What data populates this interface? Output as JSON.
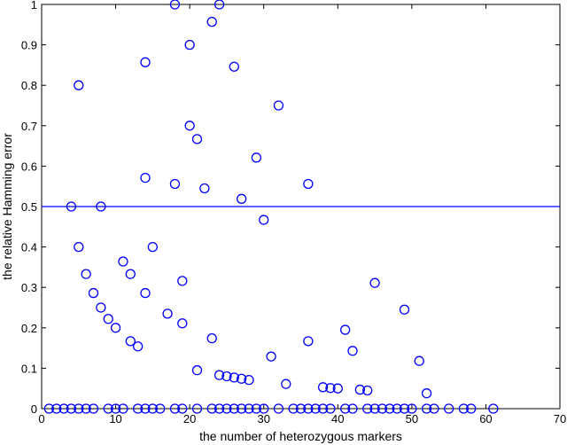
{
  "chart_data": {
    "type": "scatter",
    "xlabel": "the number of heterozygous markers",
    "ylabel": "the relative Hamming error",
    "xlim": [
      0,
      70
    ],
    "ylim": [
      0,
      1
    ],
    "x_ticks": [
      0,
      10,
      20,
      30,
      40,
      50,
      60,
      70
    ],
    "y_ticks": [
      0,
      0.1,
      0.2,
      0.3,
      0.4,
      0.5,
      0.6,
      0.7,
      0.8,
      0.9,
      1
    ],
    "x_tick_labels": [
      "0",
      "10",
      "20",
      "30",
      "40",
      "50",
      "60",
      "70"
    ],
    "y_tick_labels": [
      "0",
      "0.1",
      "0.2",
      "0.3",
      "0.4",
      "0.5",
      "0.6",
      "0.7",
      "0.8",
      "0.9",
      "1"
    ],
    "grid": false,
    "reference_line": {
      "y": 0.5,
      "color": "#0000ff"
    },
    "marker": "circle-open",
    "color": "#0000ff",
    "points": [
      {
        "x": 1,
        "y": 0
      },
      {
        "x": 2,
        "y": 0
      },
      {
        "x": 3,
        "y": 0
      },
      {
        "x": 4,
        "y": 0
      },
      {
        "x": 5,
        "y": 0
      },
      {
        "x": 6,
        "y": 0
      },
      {
        "x": 7,
        "y": 0
      },
      {
        "x": 9,
        "y": 0
      },
      {
        "x": 10,
        "y": 0
      },
      {
        "x": 11,
        "y": 0
      },
      {
        "x": 13,
        "y": 0
      },
      {
        "x": 14,
        "y": 0
      },
      {
        "x": 15,
        "y": 0
      },
      {
        "x": 16,
        "y": 0
      },
      {
        "x": 18,
        "y": 0
      },
      {
        "x": 19,
        "y": 0
      },
      {
        "x": 21,
        "y": 0
      },
      {
        "x": 23,
        "y": 0
      },
      {
        "x": 24,
        "y": 0
      },
      {
        "x": 25,
        "y": 0
      },
      {
        "x": 26,
        "y": 0
      },
      {
        "x": 27,
        "y": 0
      },
      {
        "x": 28,
        "y": 0
      },
      {
        "x": 29,
        "y": 0
      },
      {
        "x": 30,
        "y": 0
      },
      {
        "x": 32,
        "y": 0
      },
      {
        "x": 34,
        "y": 0
      },
      {
        "x": 35,
        "y": 0
      },
      {
        "x": 36,
        "y": 0
      },
      {
        "x": 37,
        "y": 0
      },
      {
        "x": 38,
        "y": 0
      },
      {
        "x": 39,
        "y": 0
      },
      {
        "x": 41,
        "y": 0
      },
      {
        "x": 42,
        "y": 0
      },
      {
        "x": 44,
        "y": 0
      },
      {
        "x": 45,
        "y": 0
      },
      {
        "x": 46,
        "y": 0
      },
      {
        "x": 47,
        "y": 0
      },
      {
        "x": 48,
        "y": 0
      },
      {
        "x": 49,
        "y": 0
      },
      {
        "x": 50,
        "y": 0
      },
      {
        "x": 52,
        "y": 0
      },
      {
        "x": 53,
        "y": 0
      },
      {
        "x": 55,
        "y": 0
      },
      {
        "x": 57,
        "y": 0
      },
      {
        "x": 58,
        "y": 0
      },
      {
        "x": 61,
        "y": 0
      },
      {
        "x": 4,
        "y": 0.5
      },
      {
        "x": 5,
        "y": 0.8
      },
      {
        "x": 5,
        "y": 0.4
      },
      {
        "x": 6,
        "y": 0.333
      },
      {
        "x": 7,
        "y": 0.286
      },
      {
        "x": 8,
        "y": 0.5
      },
      {
        "x": 8,
        "y": 0.25
      },
      {
        "x": 9,
        "y": 0.222
      },
      {
        "x": 10,
        "y": 0.2
      },
      {
        "x": 11,
        "y": 0.364
      },
      {
        "x": 12,
        "y": 0.333
      },
      {
        "x": 12,
        "y": 0.167
      },
      {
        "x": 13,
        "y": 0.154
      },
      {
        "x": 14,
        "y": 0.857
      },
      {
        "x": 14,
        "y": 0.571
      },
      {
        "x": 14,
        "y": 0.286
      },
      {
        "x": 15,
        "y": 0.4
      },
      {
        "x": 17,
        "y": 0.235
      },
      {
        "x": 18,
        "y": 1
      },
      {
        "x": 18,
        "y": 0.556
      },
      {
        "x": 19,
        "y": 0.316
      },
      {
        "x": 19,
        "y": 0.211
      },
      {
        "x": 20,
        "y": 0.9
      },
      {
        "x": 20,
        "y": 0.7
      },
      {
        "x": 21,
        "y": 0.667
      },
      {
        "x": 21,
        "y": 0.095
      },
      {
        "x": 22,
        "y": 0.545
      },
      {
        "x": 23,
        "y": 0.957
      },
      {
        "x": 23,
        "y": 0.174
      },
      {
        "x": 24,
        "y": 1
      },
      {
        "x": 24,
        "y": 0.083
      },
      {
        "x": 25,
        "y": 0.08
      },
      {
        "x": 26,
        "y": 0.846
      },
      {
        "x": 26,
        "y": 0.077
      },
      {
        "x": 27,
        "y": 0.519
      },
      {
        "x": 27,
        "y": 0.074
      },
      {
        "x": 28,
        "y": 0.071
      },
      {
        "x": 29,
        "y": 0.621
      },
      {
        "x": 30,
        "y": 0.467
      },
      {
        "x": 31,
        "y": 0.129
      },
      {
        "x": 32,
        "y": 0.75
      },
      {
        "x": 33,
        "y": 0.061
      },
      {
        "x": 36,
        "y": 0.556
      },
      {
        "x": 36,
        "y": 0.167
      },
      {
        "x": 38,
        "y": 0.053
      },
      {
        "x": 39,
        "y": 0.051
      },
      {
        "x": 40,
        "y": 0.05
      },
      {
        "x": 41,
        "y": 0.195
      },
      {
        "x": 42,
        "y": 0.143
      },
      {
        "x": 43,
        "y": 0.047
      },
      {
        "x": 44,
        "y": 0.045
      },
      {
        "x": 45,
        "y": 0.311
      },
      {
        "x": 49,
        "y": 0.245
      },
      {
        "x": 51,
        "y": 0.118
      },
      {
        "x": 52,
        "y": 0.038
      }
    ]
  }
}
